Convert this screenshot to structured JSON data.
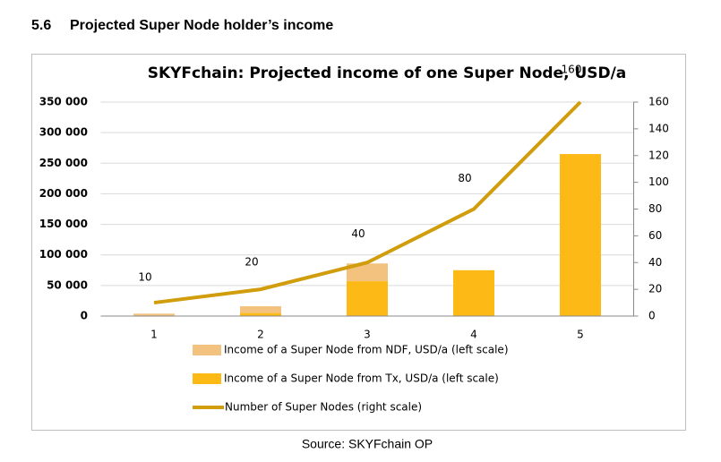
{
  "heading": {
    "number": "5.6",
    "title": "Projected Super Node holder’s income"
  },
  "source": "Source: SKYFchain OP",
  "chart_data": {
    "type": "bar-line",
    "title": "SKYFchain: Projected income of one Super Node, USD/a",
    "categories": [
      "1",
      "2",
      "3",
      "4",
      "5"
    ],
    "series": [
      {
        "name": "Income of a Super Node from NDF, USD/a (left scale)",
        "color": "#f3c27e",
        "type": "bar",
        "values": [
          4000,
          11000,
          29000,
          0,
          0
        ]
      },
      {
        "name": "Income of a Super Node from Tx, USD/a  (left scale)",
        "color": "#fdb916",
        "type": "bar",
        "values": [
          0,
          5000,
          57000,
          75000,
          265000
        ]
      },
      {
        "name": "Number of Super Nodes (right scale)",
        "color": "#d19d0c",
        "type": "line",
        "axis": "y2",
        "values": [
          10,
          20,
          40,
          80,
          160
        ]
      }
    ],
    "ylim": [
      0,
      350000
    ],
    "yticks": [
      0,
      {
        "value": 50000,
        "label": "50 000"
      },
      {
        "value": 100000,
        "label": "100 000"
      },
      {
        "value": 150000,
        "label": "150 000"
      },
      {
        "value": 200000,
        "label": "200 000"
      },
      {
        "value": 250000,
        "label": "250 000"
      },
      {
        "value": 300000,
        "label": "300 000"
      },
      {
        "value": 350000,
        "label": "350 000"
      }
    ],
    "y2lim": [
      0,
      160
    ],
    "y2ticks": [
      0,
      20,
      40,
      60,
      80,
      100,
      120,
      140,
      160
    ],
    "grid": true
  }
}
